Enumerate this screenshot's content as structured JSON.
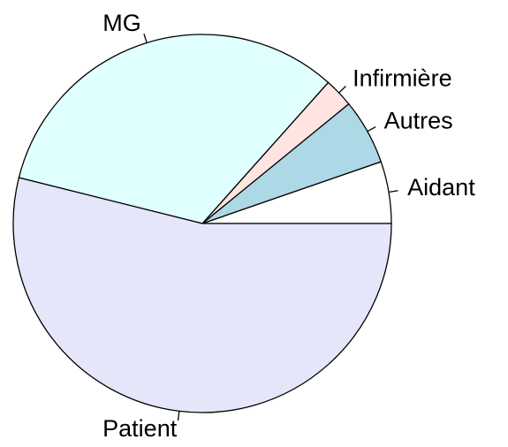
{
  "chart_data": {
    "type": "pie",
    "categories": [
      "Aidant",
      "Autres",
      "Infirmière",
      "MG",
      "Patient"
    ],
    "values": [
      5.3,
      5.6,
      2.5,
      32.7,
      53.9
    ],
    "colors": [
      "#ffffff",
      "#add8e6",
      "#ffe4e1",
      "#e0ffff",
      "#e6e6fa"
    ]
  }
}
